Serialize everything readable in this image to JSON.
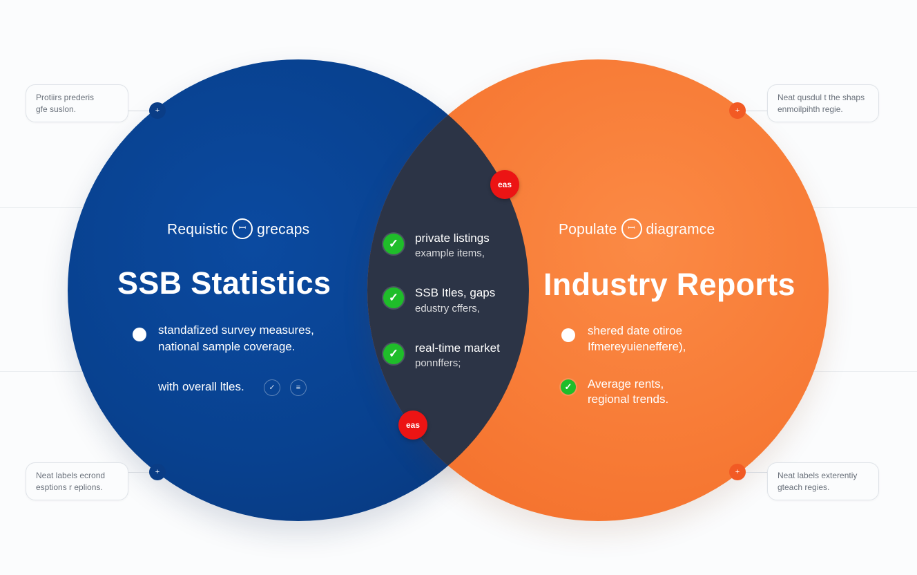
{
  "left_set": {
    "subtitle_pre": "Requistic",
    "subtitle_icon": "ꟷ",
    "subtitle_post": "grecaps",
    "title": "SSB Statistics",
    "bullet_line1": "standafized survey measures,",
    "bullet_line2": "national sample coverage.",
    "footer_text": "with overall ltles.",
    "footer_icon1": "✓",
    "footer_icon2": "≡"
  },
  "right_set": {
    "subtitle_pre": "Populate",
    "subtitle_icon": "ꟷ",
    "subtitle_post": "diagramce",
    "title": "Industry Reports",
    "bullet_line1": "shered date otiroe",
    "bullet_line2": "Ifmereyuieneffere),",
    "check_line1": "Average rents,",
    "check_line2": "regional trends."
  },
  "overlap": {
    "items": [
      {
        "main": "private listings",
        "sub": "example items,"
      },
      {
        "main": "SSB Itles, gaps",
        "sub": "edustry cffers,"
      },
      {
        "main": "real-time market",
        "sub": "ponnffers;"
      }
    ],
    "badge_top": "eas",
    "badge_bottom": "eas"
  },
  "notes": {
    "top_left": [
      "Protiirs prederis",
      "gfe suslon."
    ],
    "top_right": [
      "Neat qusdul t the shaps",
      "enmoilpihth regie."
    ],
    "bottom_left": [
      "Neat labels ecrond",
      "esptions r eplions."
    ],
    "bottom_right": [
      "Neat labels exterentiy",
      "gteach regies."
    ]
  },
  "icons": {
    "check": "✓",
    "node": "+"
  },
  "colors": {
    "left_circle": "#08418f",
    "right_circle": "#f77a35",
    "overlap": "#2c3446",
    "check": "#1fbd2a",
    "badge": "#ec1414"
  }
}
